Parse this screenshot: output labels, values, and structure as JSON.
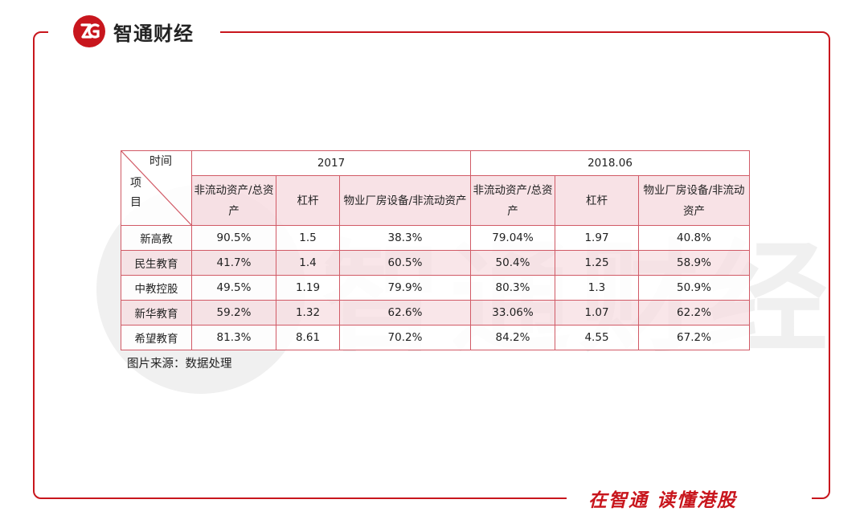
{
  "brand": {
    "name": "智通财经"
  },
  "slogan": "在智通 读懂港股",
  "watermark": "智通财经",
  "table": {
    "corner_top": "时间",
    "corner_bottom": "项目",
    "periods": [
      "2017",
      "2018.06"
    ],
    "columns": [
      "非流动资产/总资产",
      "杠杆",
      "物业厂房设备/非流动资产",
      "非流动资产/总资产",
      "杠杆",
      "物业厂房设备/非流动资产"
    ],
    "rows": [
      {
        "name": "新高教",
        "values": [
          "90.5%",
          "1.5",
          "38.3%",
          "79.04%",
          "1.97",
          "40.8%"
        ]
      },
      {
        "name": "民生教育",
        "values": [
          "41.7%",
          "1.4",
          "60.5%",
          "50.4%",
          "1.25",
          "58.9%"
        ]
      },
      {
        "name": "中教控股",
        "values": [
          "49.5%",
          "1.19",
          "79.9%",
          "80.3%",
          "1.3",
          "50.9%"
        ]
      },
      {
        "name": "新华教育",
        "values": [
          "59.2%",
          "1.32",
          "62.6%",
          "33.06%",
          "1.07",
          "62.2%"
        ]
      },
      {
        "name": "希望教育",
        "values": [
          "81.3%",
          "8.61",
          "70.2%",
          "84.2%",
          "4.55",
          "67.2%"
        ]
      }
    ]
  },
  "source": "图片来源：数据处理",
  "colors": {
    "accent": "#c8161d",
    "row_highlight": "#f7dde2",
    "table_border": "#d15a66"
  }
}
